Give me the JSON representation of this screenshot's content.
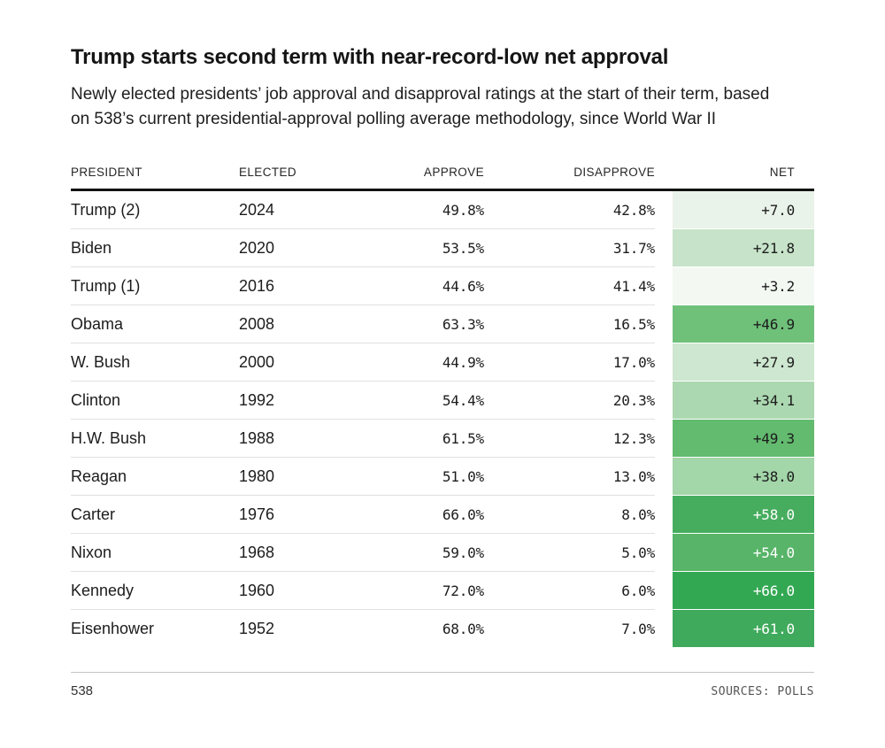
{
  "header": {
    "title": "Trump starts second term with near-record-low net approval",
    "subtitle": "Newly elected presidents’ job approval and disapproval ratings at the start of their term, based on 538’s current presidential-approval polling average methodology, since World War II"
  },
  "table": {
    "columns": [
      "PRESIDENT",
      "ELECTED",
      "APPROVE",
      "DISAPPROVE",
      "NET"
    ],
    "rows": [
      {
        "president": "Trump (2)",
        "elected": "2024",
        "approve": "49.8%",
        "disapprove": "42.8%",
        "net": "+7.0",
        "net_bg": "#eaf3ea",
        "net_text": "#1c1c1c"
      },
      {
        "president": "Biden",
        "elected": "2020",
        "approve": "53.5%",
        "disapprove": "31.7%",
        "net": "+21.8",
        "net_bg": "#c7e3c9",
        "net_text": "#1c1c1c"
      },
      {
        "president": "Trump (1)",
        "elected": "2016",
        "approve": "44.6%",
        "disapprove": "41.4%",
        "net": "+3.2",
        "net_bg": "#f3f8f3",
        "net_text": "#1c1c1c"
      },
      {
        "president": "Obama",
        "elected": "2008",
        "approve": "63.3%",
        "disapprove": "16.5%",
        "net": "+46.9",
        "net_bg": "#6fc17a",
        "net_text": "#1c1c1c"
      },
      {
        "president": "W. Bush",
        "elected": "2000",
        "approve": "44.9%",
        "disapprove": "17.0%",
        "net": "+27.9",
        "net_bg": "#cee7d0",
        "net_text": "#1c1c1c"
      },
      {
        "president": "Clinton",
        "elected": "1992",
        "approve": "54.4%",
        "disapprove": "20.3%",
        "net": "+34.1",
        "net_bg": "#abd8b0",
        "net_text": "#1c1c1c"
      },
      {
        "president": "H.W. Bush",
        "elected": "1988",
        "approve": "61.5%",
        "disapprove": "12.3%",
        "net": "+49.3",
        "net_bg": "#63bb6f",
        "net_text": "#1c1c1c"
      },
      {
        "president": "Reagan",
        "elected": "1980",
        "approve": "51.0%",
        "disapprove": "13.0%",
        "net": "+38.0",
        "net_bg": "#a3d6a9",
        "net_text": "#1c1c1c"
      },
      {
        "president": "Carter",
        "elected": "1976",
        "approve": "66.0%",
        "disapprove": "8.0%",
        "net": "+58.0",
        "net_bg": "#46ad5e",
        "net_text": "#ffffff"
      },
      {
        "president": "Nixon",
        "elected": "1968",
        "approve": "59.0%",
        "disapprove": "5.0%",
        "net": "+54.0",
        "net_bg": "#57b468",
        "net_text": "#ffffff"
      },
      {
        "president": "Kennedy",
        "elected": "1960",
        "approve": "72.0%",
        "disapprove": "6.0%",
        "net": "+66.0",
        "net_bg": "#33a853",
        "net_text": "#ffffff"
      },
      {
        "president": "Eisenhower",
        "elected": "1952",
        "approve": "68.0%",
        "disapprove": "7.0%",
        "net": "+61.0",
        "net_bg": "#3faa5c",
        "net_text": "#ffffff"
      }
    ]
  },
  "footer": {
    "brand": "538",
    "sources": "SOURCES: POLLS"
  },
  "colors": {
    "net_scale_min": "#f3f8f3",
    "net_scale_max": "#33a853",
    "header_rule": "#121212",
    "row_separator": "#e1e1e1",
    "footer_rule": "#c4c4c4"
  },
  "chart_data": {
    "type": "table",
    "title": "Trump starts second term with near-record-low net approval",
    "subtitle": "Newly elected presidents’ job approval and disapproval ratings at the start of their term, based on 538’s current presidential-approval polling average methodology, since World War II",
    "columns": [
      "President",
      "Elected",
      "Approve",
      "Disapprove",
      "Net"
    ],
    "rows": [
      [
        "Trump (2)",
        2024,
        49.8,
        42.8,
        7.0
      ],
      [
        "Biden",
        2020,
        53.5,
        31.7,
        21.8
      ],
      [
        "Trump (1)",
        2016,
        44.6,
        41.4,
        3.2
      ],
      [
        "Obama",
        2008,
        63.3,
        16.5,
        46.9
      ],
      [
        "W. Bush",
        2000,
        44.9,
        17.0,
        27.9
      ],
      [
        "Clinton",
        1992,
        54.4,
        20.3,
        34.1
      ],
      [
        "H.W. Bush",
        1988,
        61.5,
        12.3,
        49.3
      ],
      [
        "Reagan",
        1980,
        51.0,
        13.0,
        38.0
      ],
      [
        "Carter",
        1976,
        66.0,
        8.0,
        58.0
      ],
      [
        "Nixon",
        1968,
        59.0,
        5.0,
        54.0
      ],
      [
        "Kennedy",
        1960,
        72.0,
        6.0,
        66.0
      ],
      [
        "Eisenhower",
        1952,
        68.0,
        7.0,
        61.0
      ]
    ],
    "heatmap_column": "Net",
    "heatmap_range": [
      3.2,
      66.0
    ],
    "legend": "none",
    "source": "538 / Polls"
  }
}
